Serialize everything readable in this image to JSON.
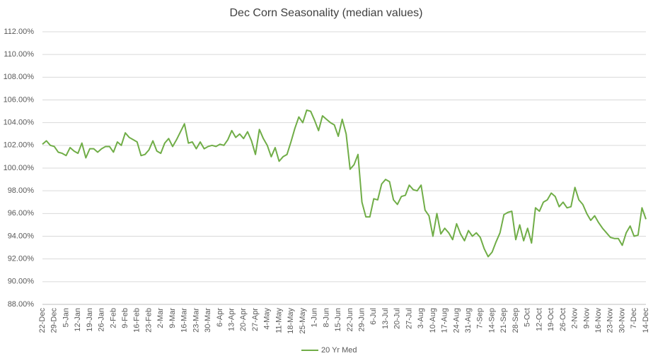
{
  "chart_data": {
    "type": "line",
    "title": "Dec Corn Seasonality (median values)",
    "categories": [
      "22-Dec",
      null,
      null,
      "29-Dec",
      null,
      null,
      "5-Jan",
      null,
      null,
      "12-Jan",
      null,
      null,
      "19-Jan",
      null,
      null,
      "26-Jan",
      null,
      null,
      "2-Feb",
      null,
      null,
      "9-Feb",
      null,
      null,
      "16-Feb",
      null,
      null,
      "23-Feb",
      null,
      null,
      "2-Mar",
      null,
      null,
      "9-Mar",
      null,
      null,
      "16-Mar",
      null,
      null,
      "23-Mar",
      null,
      null,
      "30-Mar",
      null,
      null,
      "6-Apr",
      null,
      null,
      "13-Apr",
      null,
      null,
      "20-Apr",
      null,
      null,
      "27-Apr",
      null,
      null,
      "4-May",
      null,
      null,
      "11-May",
      null,
      null,
      "18-May",
      null,
      null,
      "25-May",
      null,
      null,
      "1-Jun",
      null,
      null,
      "8-Jun",
      null,
      null,
      "15-Jun",
      null,
      null,
      "22-Jun",
      null,
      null,
      "29-Jun",
      null,
      null,
      "6-Jul",
      null,
      null,
      "13-Jul",
      null,
      null,
      "20-Jul",
      null,
      null,
      "27-Jul",
      null,
      null,
      "3-Aug",
      null,
      null,
      "10-Aug",
      null,
      null,
      "17-Aug",
      null,
      null,
      "24-Aug",
      null,
      null,
      "31-Aug",
      null,
      null,
      "7-Sep",
      null,
      null,
      "14-Sep",
      null,
      null,
      "21-Sep",
      null,
      null,
      "28-Sep",
      null,
      null,
      "5-Oct",
      null,
      null,
      "12-Oct",
      null,
      null,
      "19-Oct",
      null,
      null,
      "26-Oct",
      null,
      null,
      "2-Nov",
      null,
      null,
      "9-Nov",
      null,
      null,
      "16-Nov",
      null,
      null,
      "23-Nov",
      null,
      null,
      "30-Nov",
      null,
      null,
      "7-Dec",
      null,
      null,
      "14-Dec"
    ],
    "series": [
      {
        "name": "20 Yr Med",
        "color": "#70ad47",
        "values": [
          102.1,
          102.4,
          102.0,
          101.9,
          101.4,
          101.3,
          101.1,
          101.8,
          101.5,
          101.3,
          102.2,
          100.9,
          101.7,
          101.7,
          101.4,
          101.7,
          101.9,
          101.9,
          101.4,
          102.3,
          102.0,
          103.1,
          102.7,
          102.5,
          102.3,
          101.1,
          101.2,
          101.6,
          102.4,
          101.5,
          101.3,
          102.2,
          102.6,
          101.9,
          102.5,
          103.2,
          103.9,
          102.2,
          102.3,
          101.7,
          102.3,
          101.7,
          101.9,
          102.0,
          101.9,
          102.1,
          102.0,
          102.5,
          103.3,
          102.7,
          103.0,
          102.6,
          103.2,
          102.4,
          101.2,
          103.4,
          102.6,
          102.0,
          101.0,
          101.8,
          100.6,
          101.0,
          101.2,
          102.3,
          103.5,
          104.5,
          104.0,
          105.1,
          105.0,
          104.2,
          103.3,
          104.6,
          104.3,
          104.0,
          103.8,
          102.8,
          104.3,
          103.0,
          99.9,
          100.3,
          101.2,
          97.0,
          95.7,
          95.7,
          97.3,
          97.2,
          98.6,
          99.0,
          98.8,
          97.2,
          96.8,
          97.5,
          97.6,
          98.5,
          98.1,
          98.0,
          98.5,
          96.3,
          95.8,
          94.0,
          96.0,
          94.2,
          94.7,
          94.3,
          93.7,
          95.1,
          94.2,
          93.6,
          94.5,
          94.0,
          94.3,
          93.9,
          92.9,
          92.2,
          92.6,
          93.5,
          94.3,
          95.9,
          96.1,
          96.2,
          93.7,
          95.0,
          93.6,
          94.7,
          93.4,
          96.5,
          96.2,
          97.0,
          97.2,
          97.8,
          97.5,
          96.6,
          97.0,
          96.5,
          96.6,
          98.3,
          97.2,
          96.8,
          96.0,
          95.4,
          95.8,
          95.2,
          94.7,
          94.3,
          93.9,
          93.8,
          93.8,
          93.2,
          94.3,
          94.9,
          94.0,
          94.1,
          96.5,
          95.5
        ]
      }
    ],
    "ylim": [
      88,
      112
    ],
    "yticks": [
      {
        "value": 88,
        "label": "88.00%"
      },
      {
        "value": 90,
        "label": "90.00%"
      },
      {
        "value": 92,
        "label": "92.00%"
      },
      {
        "value": 94,
        "label": "94.00%"
      },
      {
        "value": 96,
        "label": "96.00%"
      },
      {
        "value": 98,
        "label": "98.00%"
      },
      {
        "value": 100,
        "label": "100.00%"
      },
      {
        "value": 102,
        "label": "102.00%"
      },
      {
        "value": 104,
        "label": "104.00%"
      },
      {
        "value": 106,
        "label": "106.00%"
      },
      {
        "value": 108,
        "label": "108.00%"
      },
      {
        "value": 110,
        "label": "110.00%"
      },
      {
        "value": 112,
        "label": "112.00%"
      }
    ],
    "grid": true,
    "legend": "bottom"
  }
}
